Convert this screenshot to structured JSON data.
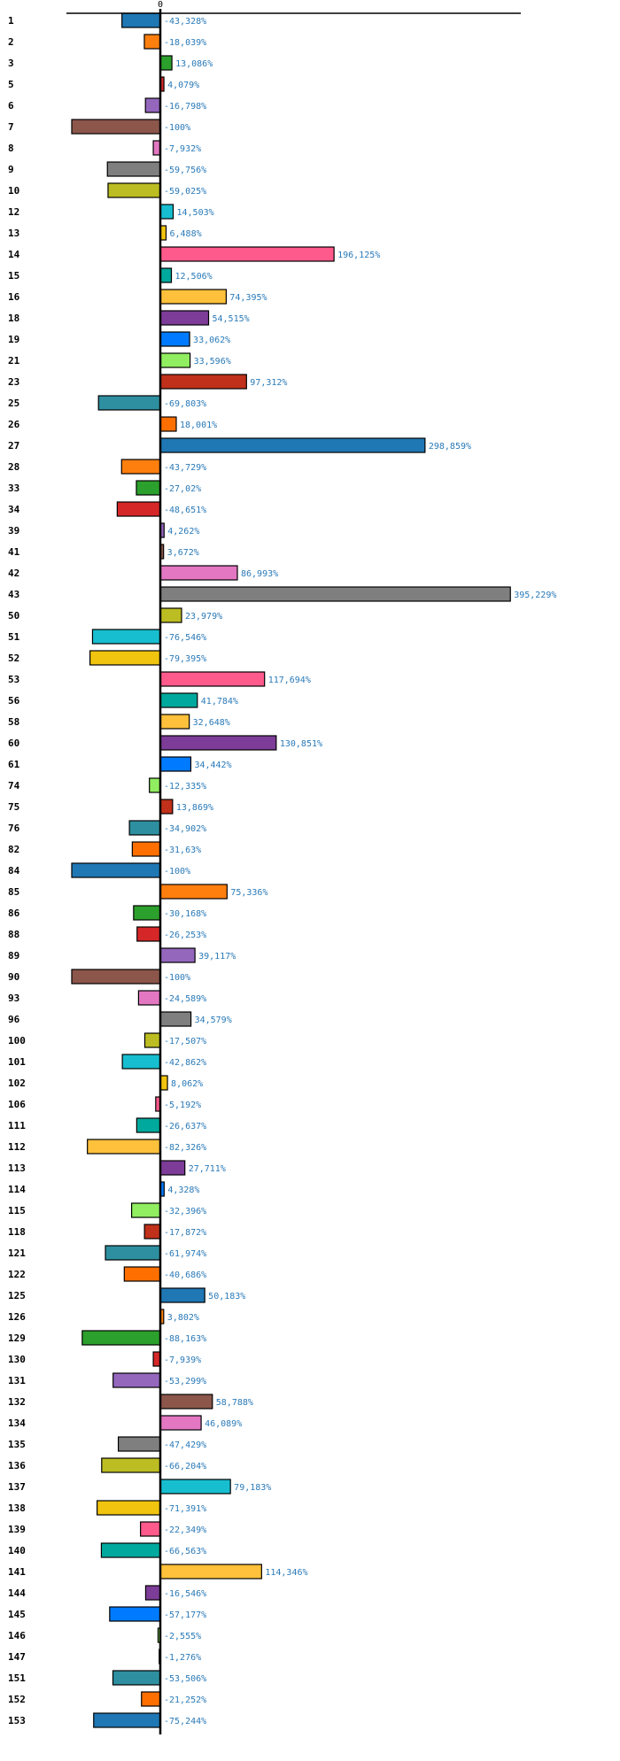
{
  "chart_data": {
    "type": "bar",
    "orientation": "horizontal",
    "title": "",
    "xlabel": "",
    "ylabel": "",
    "x_ticks": [
      "0"
    ],
    "xlim": [
      -105,
      405
    ],
    "value_suffix": "%",
    "decimal_separator": ",",
    "highlighted_category": "12",
    "highlight_color": "#e8000b",
    "value_label_color": "#2a7ab8",
    "palette": [
      "#1f77b4",
      "#ff7f0e",
      "#2ca02c",
      "#d62728",
      "#9467bd",
      "#8c564b",
      "#e377c2",
      "#7f7f7f",
      "#bcbd22",
      "#17becf",
      "#f1c40f",
      "#ff5a8c",
      "#00a99d",
      "#ffc13b",
      "#7d3c98",
      "#007bff",
      "#90ee60",
      "#c0301a",
      "#2e8fa0",
      "#ff6f00"
    ],
    "categories": [
      "1",
      "2",
      "3",
      "5",
      "6",
      "7",
      "8",
      "9",
      "10",
      "12",
      "13",
      "14",
      "15",
      "16",
      "18",
      "19",
      "21",
      "23",
      "25",
      "26",
      "27",
      "28",
      "33",
      "34",
      "39",
      "41",
      "42",
      "43",
      "50",
      "51",
      "52",
      "53",
      "56",
      "58",
      "60",
      "61",
      "74",
      "75",
      "76",
      "82",
      "84",
      "85",
      "86",
      "88",
      "89",
      "90",
      "93",
      "96",
      "100",
      "101",
      "102",
      "106",
      "111",
      "112",
      "113",
      "114",
      "115",
      "118",
      "121",
      "122",
      "125",
      "126",
      "129",
      "130",
      "131",
      "132",
      "134",
      "135",
      "136",
      "137",
      "138",
      "139",
      "140",
      "141",
      "144",
      "145",
      "146",
      "147",
      "151",
      "152",
      "153"
    ],
    "values": [
      -43.328,
      -18.039,
      13.086,
      4.079,
      -16.798,
      -100,
      -7.932,
      -59.756,
      -59.025,
      14.503,
      6.488,
      196.125,
      12.506,
      74.395,
      54.515,
      33.062,
      33.596,
      97.312,
      -69.803,
      18.001,
      298.859,
      -43.729,
      -27.02,
      -48.651,
      4.262,
      3.672,
      86.993,
      395.229,
      23.979,
      -76.546,
      -79.395,
      117.694,
      41.784,
      32.648,
      130.851,
      34.442,
      -12.335,
      13.869,
      -34.902,
      -31.63,
      -100,
      75.336,
      -30.168,
      -26.253,
      39.117,
      -100,
      -24.589,
      34.579,
      -17.507,
      -42.862,
      8.062,
      -5.192,
      -26.637,
      -82.326,
      27.711,
      4.328,
      -32.396,
      -17.872,
      -61.974,
      -40.686,
      50.183,
      3.802,
      -88.163,
      -7.939,
      -53.299,
      58.788,
      46.089,
      -47.429,
      -66.204,
      79.183,
      -71.391,
      -22.349,
      -66.563,
      114.346,
      -16.546,
      -57.177,
      -2.555,
      -1.276,
      -53.506,
      -21.252,
      -75.244
    ],
    "value_labels": [
      "-43,328%",
      "-18,039%",
      "13,086%",
      "4,079%",
      "-16,798%",
      "-100%",
      "-7,932%",
      "-59,756%",
      "-59,025%",
      "14,503%",
      "6,488%",
      "196,125%",
      "12,506%",
      "74,395%",
      "54,515%",
      "33,062%",
      "33,596%",
      "97,312%",
      "-69,803%",
      "18,001%",
      "298,859%",
      "-43,729%",
      "-27,02%",
      "-48,651%",
      "4,262%",
      "3,672%",
      "86,993%",
      "395,229%",
      "23,979%",
      "-76,546%",
      "-79,395%",
      "117,694%",
      "41,784%",
      "32,648%",
      "130,851%",
      "34,442%",
      "-12,335%",
      "13,869%",
      "-34,902%",
      "-31,63%",
      "-100%",
      "75,336%",
      "-30,168%",
      "-26,253%",
      "39,117%",
      "-100%",
      "-24,589%",
      "34,579%",
      "-17,507%",
      "-42,862%",
      "8,062%",
      "-5,192%",
      "-26,637%",
      "-82,326%",
      "27,711%",
      "4,328%",
      "-32,396%",
      "-17,872%",
      "-61,974%",
      "-40,686%",
      "50,183%",
      "3,802%",
      "-88,163%",
      "-7,939%",
      "-53,299%",
      "58,788%",
      "46,089%",
      "-47,429%",
      "-66,204%",
      "79,183%",
      "-71,391%",
      "-22,349%",
      "-66,563%",
      "114,346%",
      "-16,546%",
      "-57,177%",
      "-2,555%",
      "-1,276%",
      "-53,506%",
      "-21,252%",
      "-75,244%"
    ]
  }
}
